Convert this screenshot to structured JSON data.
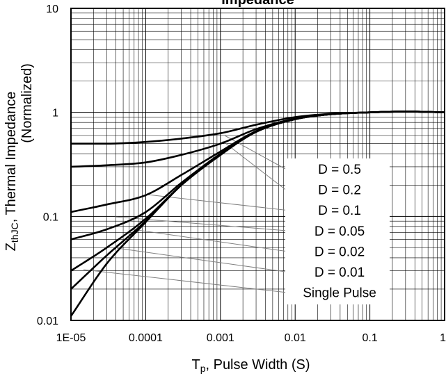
{
  "chart_data": {
    "type": "line",
    "title": "Impedance",
    "xlabel": {
      "main": "T",
      "sub": "p",
      "rest": ", Pulse Width (S)"
    },
    "ylabel": {
      "line1_main": "Z",
      "line1_sub": "thJC",
      "line1_rest": ", Thermal Impedance",
      "line2": "(Normalized)"
    },
    "xscale": "log",
    "yscale": "log",
    "xlim": [
      1e-05,
      1
    ],
    "ylim": [
      0.01,
      10
    ],
    "grid": true,
    "x_tick_labels": [
      "1E-05",
      "0.0001",
      "0.001",
      "0.01",
      "0.1",
      "1"
    ],
    "y_tick_labels": [
      "0.01",
      "0.1",
      "1",
      "10"
    ],
    "series": [
      {
        "name": "D = 0.5",
        "x": [
          1e-05,
          3e-05,
          0.0001,
          0.0003,
          0.001,
          0.003,
          0.01,
          0.03,
          0.1,
          0.3,
          1
        ],
        "y": [
          0.5,
          0.5,
          0.52,
          0.56,
          0.63,
          0.76,
          0.9,
          0.97,
          1.0,
          1.02,
          1.0
        ]
      },
      {
        "name": "D = 0.2",
        "x": [
          1e-05,
          3e-05,
          0.0001,
          0.0003,
          0.001,
          0.003,
          0.01,
          0.03,
          0.1,
          0.3,
          1
        ],
        "y": [
          0.3,
          0.31,
          0.33,
          0.39,
          0.5,
          0.69,
          0.87,
          0.96,
          1.0,
          1.02,
          1.0
        ]
      },
      {
        "name": "D = 0.1",
        "x": [
          1e-05,
          3e-05,
          0.0001,
          0.0003,
          0.001,
          0.003,
          0.01,
          0.03,
          0.1,
          0.3,
          1
        ],
        "y": [
          0.11,
          0.13,
          0.16,
          0.25,
          0.42,
          0.66,
          0.86,
          0.96,
          1.0,
          1.02,
          1.0
        ]
      },
      {
        "name": "D = 0.05",
        "x": [
          1e-05,
          3e-05,
          0.0001,
          0.0003,
          0.001,
          0.003,
          0.01,
          0.03,
          0.1,
          0.3,
          1
        ],
        "y": [
          0.06,
          0.075,
          0.11,
          0.21,
          0.4,
          0.65,
          0.86,
          0.96,
          1.0,
          1.02,
          1.0
        ]
      },
      {
        "name": "D = 0.02",
        "x": [
          1e-05,
          3e-05,
          0.0001,
          0.0003,
          0.001,
          0.003,
          0.01,
          0.03,
          0.1,
          0.3,
          1
        ],
        "y": [
          0.03,
          0.05,
          0.095,
          0.2,
          0.39,
          0.65,
          0.86,
          0.96,
          1.0,
          1.02,
          1.0
        ]
      },
      {
        "name": "D = 0.01",
        "x": [
          1e-05,
          3e-05,
          0.0001,
          0.0003,
          0.001,
          0.003,
          0.01,
          0.03,
          0.1,
          0.3,
          1
        ],
        "y": [
          0.02,
          0.042,
          0.09,
          0.2,
          0.39,
          0.65,
          0.86,
          0.96,
          1.0,
          1.02,
          1.0
        ]
      },
      {
        "name": "Single Pulse",
        "x": [
          1e-05,
          3e-05,
          0.0001,
          0.0003,
          0.001,
          0.003,
          0.01,
          0.03,
          0.1,
          0.3,
          1
        ],
        "y": [
          0.011,
          0.035,
          0.088,
          0.2,
          0.39,
          0.65,
          0.86,
          0.96,
          1.0,
          1.02,
          1.0
        ]
      }
    ],
    "legend_placement": "lower-right",
    "line_color": "#000000",
    "leader_line_color": "#808080"
  }
}
